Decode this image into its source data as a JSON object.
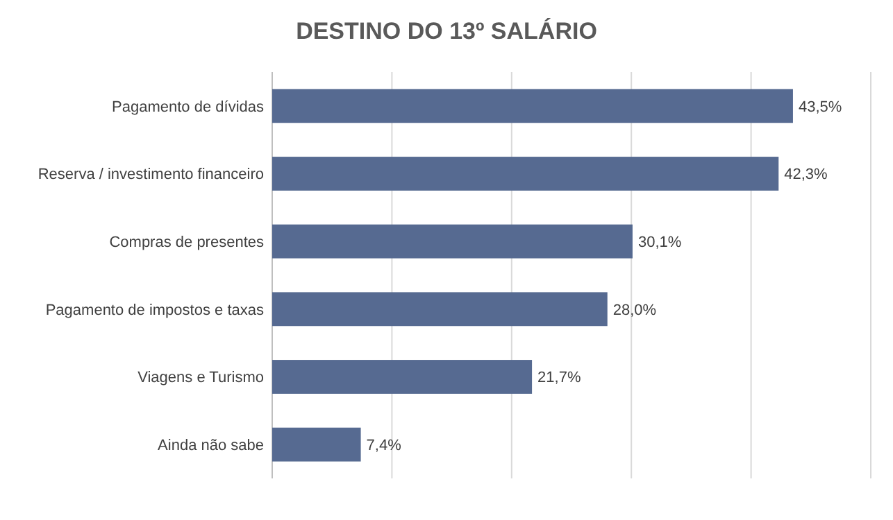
{
  "chart_data": {
    "type": "bar",
    "orientation": "horizontal",
    "title": "DESTINO DO 13º SALÁRIO",
    "categories": [
      "Pagamento de dívidas",
      "Reserva / investimento financeiro",
      "Compras de presentes",
      "Pagamento de impostos e taxas",
      "Viagens e Turismo",
      "Ainda não sabe"
    ],
    "values": [
      43.5,
      42.3,
      30.1,
      28.0,
      21.7,
      7.4
    ],
    "value_labels": [
      "43,5%",
      "42,3%",
      "30,1%",
      "28,0%",
      "21,7%",
      "7,4%"
    ],
    "color": "#566a91",
    "xlim": [
      0,
      50
    ],
    "xticks": [
      0,
      10,
      20,
      30,
      40,
      50
    ],
    "grid": "x",
    "tick_labels": "y"
  }
}
